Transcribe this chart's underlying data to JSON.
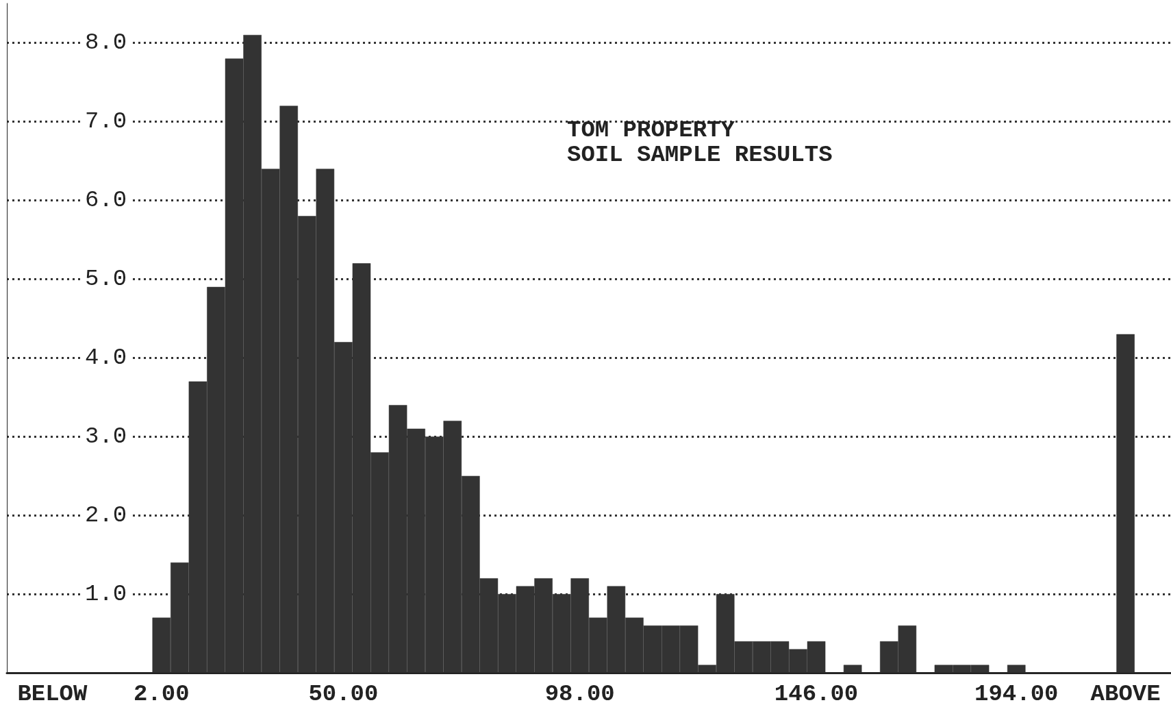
{
  "chart_data": {
    "type": "bar",
    "title": "TOM PROPERTY",
    "subtitle": "SOIL SAMPLE RESULTS",
    "categories": [
      null,
      null,
      "BELOW",
      null,
      null,
      null,
      null,
      null,
      "2.00",
      null,
      null,
      null,
      null,
      null,
      null,
      null,
      null,
      null,
      "50.00",
      null,
      null,
      null,
      null,
      null,
      null,
      null,
      null,
      null,
      null,
      null,
      null,
      "98.00",
      null,
      null,
      null,
      null,
      null,
      null,
      null,
      null,
      null,
      null,
      null,
      null,
      "146.00",
      null,
      null,
      null,
      null,
      null,
      null,
      null,
      null,
      null,
      null,
      "194.00",
      null,
      null,
      null,
      null,
      null,
      "ABOVE",
      null,
      null
    ],
    "values": [
      0,
      0,
      0,
      0,
      0,
      0,
      0,
      0,
      0.7,
      1.4,
      3.7,
      4.9,
      7.8,
      8.1,
      6.4,
      7.2,
      5.8,
      6.4,
      4.2,
      5.2,
      2.8,
      3.4,
      3.1,
      3.0,
      3.2,
      2.5,
      1.2,
      1.0,
      1.1,
      1.2,
      1.0,
      1.2,
      0.7,
      1.1,
      0.7,
      0.6,
      0.6,
      0.6,
      0.1,
      1.0,
      0.4,
      0.4,
      0.4,
      0.3,
      0.4,
      0,
      0.1,
      0,
      0.4,
      0.6,
      0,
      0.1,
      0.1,
      0.1,
      0,
      0.1,
      0,
      0,
      0,
      0,
      0,
      4.3,
      0,
      0
    ],
    "color": "#333333",
    "ylim": [
      0,
      8.5
    ],
    "yticks": [
      {
        "value": 1,
        "label": "1.0"
      },
      {
        "value": 2,
        "label": "2.0"
      },
      {
        "value": 3,
        "label": "3.0"
      },
      {
        "value": 4,
        "label": "4.0"
      },
      {
        "value": 5,
        "label": "5.0"
      },
      {
        "value": 6,
        "label": "6.0"
      },
      {
        "value": 7,
        "label": "7.0"
      },
      {
        "value": 8,
        "label": "8.0"
      }
    ],
    "grid": "y"
  }
}
